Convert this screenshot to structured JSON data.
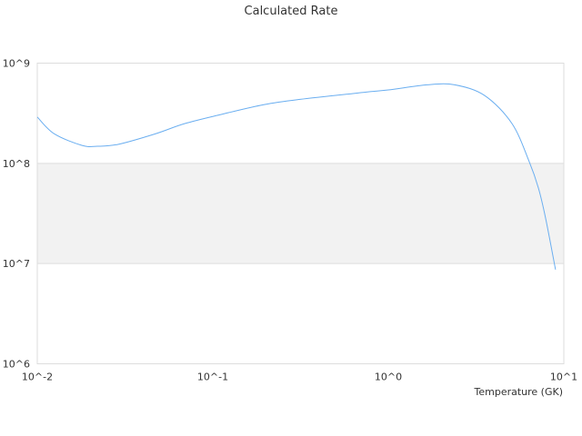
{
  "chart_data": {
    "type": "line",
    "title": "Calculated Rate",
    "xlabel": "Temperature (GK)",
    "ylabel": "",
    "x_scale": "log",
    "y_scale": "log",
    "xlim": [
      0.01,
      10
    ],
    "ylim": [
      1000000,
      1000000000
    ],
    "x_ticks": [
      {
        "value": 0.01,
        "label": "10^-2"
      },
      {
        "value": 0.1,
        "label": "10^-1"
      },
      {
        "value": 1,
        "label": "10^0"
      },
      {
        "value": 10,
        "label": "10^1"
      }
    ],
    "y_ticks": [
      {
        "value": 1000000,
        "label": "10^6"
      },
      {
        "value": 10000000,
        "label": "10^7"
      },
      {
        "value": 100000000,
        "label": "10^8"
      },
      {
        "value": 1000000000,
        "label": "10^9"
      }
    ],
    "grid": true,
    "alternate_bands": true,
    "colors": {
      "line": "#6aaef0",
      "band": "#f2f2f2",
      "grid": "#dddddd"
    },
    "series": [
      {
        "x": [
          0.01,
          0.0125,
          0.018,
          0.022,
          0.029,
          0.047,
          0.069,
          0.111,
          0.195,
          0.314,
          0.72,
          1.0,
          1.67,
          2.39,
          3.54,
          5.07,
          6.35,
          7.16,
          7.87,
          8.97
        ],
        "y": [
          290000000,
          197000000,
          151000000,
          148000000,
          155000000,
          197000000,
          249000000,
          307000000,
          385000000,
          435000000,
          510000000,
          540000000,
          607000000,
          607000000,
          475000000,
          249000000,
          104000000,
          57000000,
          28500000,
          8700000
        ]
      }
    ]
  }
}
